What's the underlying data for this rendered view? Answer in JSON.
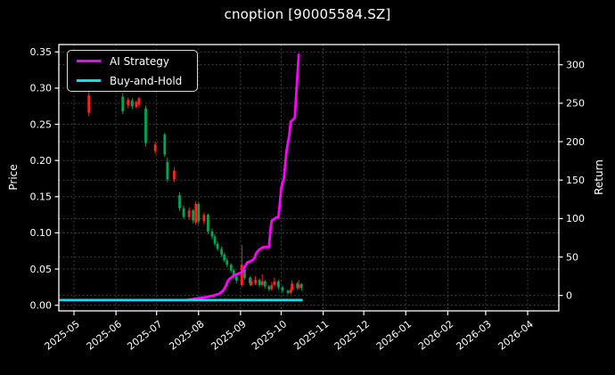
{
  "title": "cnoption [90005584.SZ]",
  "legend": {
    "items": [
      {
        "label": "AI Strategy",
        "color": "#ff00ff"
      },
      {
        "label": "Buy-and-Hold",
        "color": "#00e5ee"
      }
    ]
  },
  "axes": {
    "left": {
      "label": "Price",
      "ticks": [
        "0.00",
        "0.05",
        "0.10",
        "0.15",
        "0.20",
        "0.25",
        "0.30",
        "0.35"
      ]
    },
    "right": {
      "label": "Return",
      "ticks": [
        "0",
        "50",
        "100",
        "150",
        "200",
        "250",
        "300"
      ]
    },
    "x": {
      "ticks": [
        "2025-05",
        "2025-06",
        "2025-07",
        "2025-08",
        "2025-09",
        "2025-10",
        "2025-11",
        "2025-12",
        "2026-01",
        "2026-02",
        "2026-03",
        "2026-04"
      ]
    }
  },
  "colors": {
    "background": "#000000",
    "text": "#ffffff",
    "grid": "#4a4a4a",
    "spine": "#ffffff",
    "candle_up": "#ff2020",
    "candle_down": "#00a651"
  },
  "chart_data": {
    "type": "candlestick+line",
    "title": "cnoption [90005584.SZ]",
    "x_axis": {
      "labels": [
        "2025-05",
        "2025-06",
        "2025-07",
        "2025-08",
        "2025-09",
        "2025-10",
        "2025-11",
        "2025-12",
        "2026-01",
        "2026-02",
        "2026-03",
        "2026-04"
      ],
      "grid": true
    },
    "price_axis": {
      "label": "Price",
      "ticks": [
        0.0,
        0.05,
        0.1,
        0.15,
        0.2,
        0.25,
        0.3,
        0.35
      ],
      "grid": true
    },
    "return_axis": {
      "label": "Return",
      "ticks": [
        0,
        50,
        100,
        150,
        200,
        250,
        300
      ],
      "grid": true
    },
    "legend_position": "upper-left",
    "candle_columns": [
      "date",
      "open",
      "high",
      "low",
      "close"
    ],
    "candles": [
      [
        "2025-05-12",
        0.266,
        0.296,
        0.261,
        0.29
      ],
      [
        "2025-06-06",
        0.288,
        0.293,
        0.264,
        0.268
      ],
      [
        "2025-06-10",
        0.276,
        0.287,
        0.272,
        0.284
      ],
      [
        "2025-06-13",
        0.283,
        0.286,
        0.271,
        0.275
      ],
      [
        "2025-06-16",
        0.274,
        0.283,
        0.272,
        0.281
      ],
      [
        "2025-06-18",
        0.277,
        0.288,
        0.273,
        0.286
      ],
      [
        "2025-06-23",
        0.272,
        0.276,
        0.219,
        0.224
      ],
      [
        "2025-06-30",
        0.213,
        0.226,
        0.209,
        0.222
      ],
      [
        "2025-07-07",
        0.236,
        0.238,
        0.205,
        0.208
      ],
      [
        "2025-07-09",
        0.198,
        0.204,
        0.17,
        0.174
      ],
      [
        "2025-07-14",
        0.174,
        0.191,
        0.17,
        0.186
      ],
      [
        "2025-07-18",
        0.152,
        0.156,
        0.13,
        0.134
      ],
      [
        "2025-07-21",
        0.134,
        0.138,
        0.119,
        0.122
      ],
      [
        "2025-07-25",
        0.122,
        0.135,
        0.118,
        0.131
      ],
      [
        "2025-07-28",
        0.131,
        0.133,
        0.113,
        0.117
      ],
      [
        "2025-07-30",
        0.114,
        0.144,
        0.111,
        0.14
      ],
      [
        "2025-08-01",
        0.14,
        0.142,
        0.112,
        0.116
      ],
      [
        "2025-08-05",
        0.116,
        0.128,
        0.112,
        0.125
      ],
      [
        "2025-08-08",
        0.125,
        0.127,
        0.098,
        0.102
      ],
      [
        "2025-08-11",
        0.102,
        0.106,
        0.091,
        0.095
      ],
      [
        "2025-08-13",
        0.095,
        0.098,
        0.082,
        0.085
      ],
      [
        "2025-08-15",
        0.085,
        0.088,
        0.075,
        0.078
      ],
      [
        "2025-08-18",
        0.078,
        0.081,
        0.067,
        0.07
      ],
      [
        "2025-08-20",
        0.07,
        0.073,
        0.059,
        0.062
      ],
      [
        "2025-08-22",
        0.062,
        0.065,
        0.053,
        0.056
      ],
      [
        "2025-08-25",
        0.056,
        0.058,
        0.045,
        0.048
      ],
      [
        "2025-08-27",
        0.048,
        0.05,
        0.036,
        0.04
      ],
      [
        "2025-08-29",
        0.04,
        0.042,
        0.03,
        0.034
      ],
      [
        "2025-09-02",
        0.028,
        0.083,
        0.025,
        0.056
      ],
      [
        "2025-09-04",
        0.05,
        0.052,
        0.035,
        0.038
      ],
      [
        "2025-09-08",
        0.038,
        0.04,
        0.027,
        0.03
      ],
      [
        "2025-09-09",
        0.028,
        0.038,
        0.026,
        0.034
      ],
      [
        "2025-09-12",
        0.03,
        0.04,
        0.028,
        0.035
      ],
      [
        "2025-09-15",
        0.035,
        0.037,
        0.025,
        0.028
      ],
      [
        "2025-09-17",
        0.028,
        0.043,
        0.026,
        0.033
      ],
      [
        "2025-09-19",
        0.033,
        0.035,
        0.023,
        0.026
      ],
      [
        "2025-09-22",
        0.026,
        0.028,
        0.019,
        0.022
      ],
      [
        "2025-09-24",
        0.022,
        0.032,
        0.02,
        0.028
      ],
      [
        "2025-09-26",
        0.028,
        0.038,
        0.026,
        0.033
      ],
      [
        "2025-09-29",
        0.033,
        0.035,
        0.022,
        0.025
      ],
      [
        "2025-10-02",
        0.025,
        0.027,
        0.017,
        0.02
      ],
      [
        "2025-10-06",
        0.02,
        0.022,
        0.015,
        0.017
      ],
      [
        "2025-10-08",
        0.017,
        0.024,
        0.015,
        0.021
      ],
      [
        "2025-10-09",
        0.021,
        0.034,
        0.019,
        0.03
      ],
      [
        "2025-10-13",
        0.03,
        0.032,
        0.021,
        0.024
      ],
      [
        "2025-10-14",
        0.024,
        0.035,
        0.022,
        0.029
      ],
      [
        "2025-10-16",
        0.029,
        0.031,
        0.02,
        0.024
      ]
    ],
    "series": [
      {
        "name": "AI Strategy",
        "axis": "return",
        "color": "#ff00ff",
        "points": [
          [
            "2025-04-21",
            -6
          ],
          [
            "2025-07-23",
            -6
          ],
          [
            "2025-08-07",
            -2
          ],
          [
            "2025-08-12",
            0
          ],
          [
            "2025-08-16",
            2
          ],
          [
            "2025-08-19",
            6
          ],
          [
            "2025-08-21",
            12
          ],
          [
            "2025-08-23",
            20
          ],
          [
            "2025-08-25",
            23
          ],
          [
            "2025-08-27",
            26
          ],
          [
            "2025-08-30",
            28
          ],
          [
            "2025-09-02",
            30
          ],
          [
            "2025-09-04",
            37
          ],
          [
            "2025-09-06",
            43
          ],
          [
            "2025-09-09",
            45
          ],
          [
            "2025-09-11",
            48
          ],
          [
            "2025-09-13",
            56
          ],
          [
            "2025-09-15",
            60
          ],
          [
            "2025-09-18",
            63
          ],
          [
            "2025-09-22",
            63
          ],
          [
            "2025-09-23",
            84
          ],
          [
            "2025-09-24",
            97
          ],
          [
            "2025-09-27",
            101
          ],
          [
            "2025-09-29",
            102
          ],
          [
            "2025-09-30",
            119
          ],
          [
            "2025-10-01",
            140
          ],
          [
            "2025-10-03",
            152
          ],
          [
            "2025-10-04",
            171
          ],
          [
            "2025-10-05",
            188
          ],
          [
            "2025-10-07",
            209
          ],
          [
            "2025-10-08",
            226
          ],
          [
            "2025-10-10",
            229
          ],
          [
            "2025-10-11",
            231
          ],
          [
            "2025-10-12",
            259
          ],
          [
            "2025-10-13",
            286
          ],
          [
            "2025-10-14",
            313
          ]
        ]
      },
      {
        "name": "Buy-and-Hold",
        "axis": "return",
        "color": "#00e5ee",
        "points": [
          [
            "2025-04-21",
            -6
          ],
          [
            "2025-10-16",
            -6
          ]
        ]
      }
    ]
  }
}
